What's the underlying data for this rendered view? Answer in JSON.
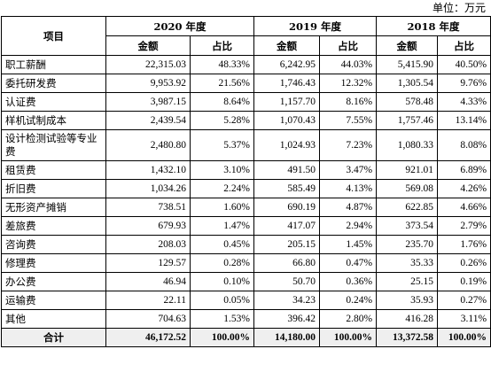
{
  "unit_note": "单位：万元",
  "headers": {
    "item": "项目",
    "years": [
      "2020 年度",
      "2019 年度",
      "2018 年度"
    ],
    "amount": "金额",
    "share": "占比"
  },
  "rows": [
    [
      "职工薪酬",
      "22,315.03",
      "48.33%",
      "6,242.95",
      "44.03%",
      "5,415.90",
      "40.50%"
    ],
    [
      "委托研发费",
      "9,953.92",
      "21.56%",
      "1,746.43",
      "12.32%",
      "1,305.54",
      "9.76%"
    ],
    [
      "认证费",
      "3,987.15",
      "8.64%",
      "1,157.70",
      "8.16%",
      "578.48",
      "4.33%"
    ],
    [
      "样机试制成本",
      "2,439.54",
      "5.28%",
      "1,070.43",
      "7.55%",
      "1,757.46",
      "13.14%"
    ],
    [
      "设计检测试验等专业费",
      "2,480.80",
      "5.37%",
      "1,024.93",
      "7.23%",
      "1,080.33",
      "8.08%"
    ],
    [
      "租赁费",
      "1,432.10",
      "3.10%",
      "491.50",
      "3.47%",
      "921.01",
      "6.89%"
    ],
    [
      "折旧费",
      "1,034.26",
      "2.24%",
      "585.49",
      "4.13%",
      "569.08",
      "4.26%"
    ],
    [
      "无形资产摊销",
      "738.51",
      "1.60%",
      "690.19",
      "4.87%",
      "622.85",
      "4.66%"
    ],
    [
      "差旅费",
      "679.93",
      "1.47%",
      "417.07",
      "2.94%",
      "373.54",
      "2.79%"
    ],
    [
      "咨询费",
      "208.03",
      "0.45%",
      "205.15",
      "1.45%",
      "235.70",
      "1.76%"
    ],
    [
      "修理费",
      "129.57",
      "0.28%",
      "66.80",
      "0.47%",
      "35.33",
      "0.26%"
    ],
    [
      "办公费",
      "46.94",
      "0.10%",
      "50.70",
      "0.36%",
      "25.15",
      "0.19%"
    ],
    [
      "运输费",
      "22.11",
      "0.05%",
      "34.23",
      "0.24%",
      "35.93",
      "0.27%"
    ],
    [
      "其他",
      "704.63",
      "1.53%",
      "396.42",
      "2.80%",
      "416.28",
      "3.11%"
    ]
  ],
  "total": [
    "合计",
    "46,172.52",
    "100.00%",
    "14,180.00",
    "100.00%",
    "13,372.58",
    "100.00%"
  ]
}
